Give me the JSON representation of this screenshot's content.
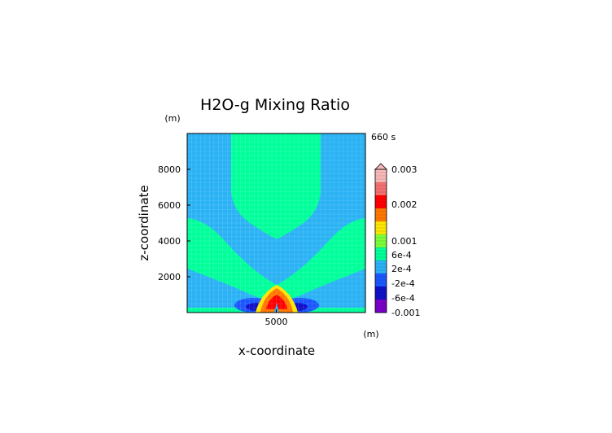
{
  "chart_data": {
    "type": "heatmap",
    "title": "H2O-g Mixing Ratio",
    "time_label": "660 s",
    "xlabel": "x-coordinate",
    "ylabel": "z-coordinate",
    "x_unit": "(m)",
    "y_unit": "(m)",
    "xlim": [
      0,
      10000
    ],
    "ylim": [
      0,
      10000
    ],
    "x_ticks": [
      {
        "value": 5000,
        "label": "5000"
      }
    ],
    "y_ticks": [
      {
        "value": 2000,
        "label": "2000"
      },
      {
        "value": 4000,
        "label": "4000"
      },
      {
        "value": 6000,
        "label": "6000"
      },
      {
        "value": 8000,
        "label": "8000"
      }
    ],
    "grid": true,
    "colorbar": {
      "labels": [
        "0.003",
        "0.002",
        "0.001",
        "6e-4",
        "2e-4",
        "-2e-4",
        "-6e-4",
        "-0.001"
      ],
      "colors": [
        "#f7b8b8",
        "#f47070",
        "#ff0000",
        "#ff7800",
        "#ffe600",
        "#7dff3a",
        "#00ff9a",
        "#2ab2f5",
        "#1a57ff",
        "#1010c8",
        "#7a00c8"
      ]
    },
    "regions": [
      {
        "level": "near-zero background",
        "color": "#2ab2f5"
      },
      {
        "level": "positive plume",
        "color": "#00ff9a"
      },
      {
        "level": "core maximum",
        "color": "#ff0000"
      },
      {
        "level": "negative lobes",
        "color": "#1010c8"
      }
    ]
  }
}
